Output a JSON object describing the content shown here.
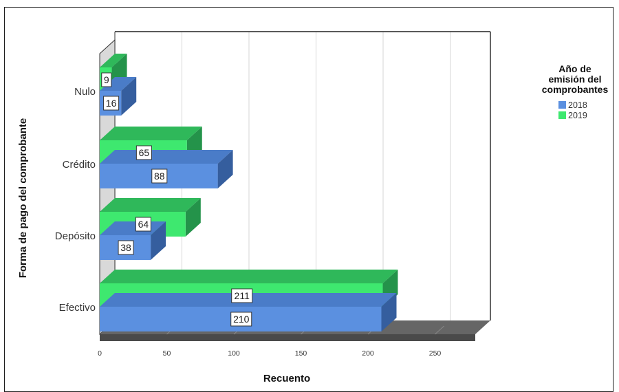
{
  "chart_data": {
    "type": "bar",
    "orientation": "horizontal",
    "categories": [
      "Nulo",
      "Crédito",
      "Depósito",
      "Efectivo"
    ],
    "series": [
      {
        "name": "2018",
        "values": [
          16,
          88,
          38,
          210
        ]
      },
      {
        "name": "2019",
        "values": [
          9,
          65,
          64,
          211
        ]
      }
    ],
    "xlabel": "Recuento",
    "ylabel": "Forma de pago del comprobante",
    "xlim": [
      0,
      250
    ],
    "xticks": [
      0,
      50,
      100,
      150,
      200,
      250
    ],
    "grid": true,
    "legend": {
      "title_lines": [
        "Año de",
        "emisión del",
        "comprobantes"
      ],
      "placement": "right"
    },
    "colors": {
      "2018": {
        "face": "#5b90e0",
        "side": "#355e9e",
        "top": "#4a7cc8"
      },
      "2019": {
        "face": "#3ee86f",
        "side": "#24934a",
        "top": "#2fb85a"
      },
      "floor": "#666666",
      "grid": "#d6d6d6"
    }
  }
}
